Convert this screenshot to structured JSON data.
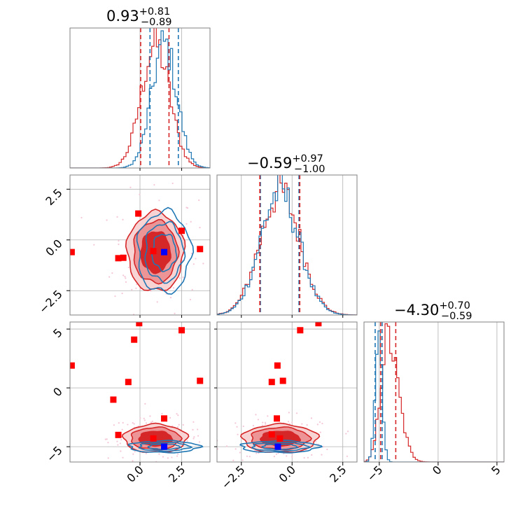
{
  "chart_data": {
    "type": "corner",
    "parameters": 3,
    "colors": {
      "red": "#d62728",
      "blue": "#1f77b4",
      "marker_red": "#ff0000",
      "marker_blue": "#0000ff"
    },
    "titles": [
      {
        "median": "0.93",
        "plus": "+0.81",
        "minus": "−0.89"
      },
      {
        "median": "−0.59",
        "plus": "+0.97",
        "minus": "−1.00"
      },
      {
        "median": "−4.30",
        "plus": "+0.70",
        "minus": "−0.59"
      }
    ],
    "ranges": [
      [
        -4.2,
        4.2
      ],
      [
        -3.7,
        3.2
      ],
      [
        -6.3,
        5.6
      ]
    ],
    "ticks": {
      "p0": [
        "0.0",
        "2.5"
      ],
      "p1": [
        "−2.5",
        "0.0",
        "2.5"
      ],
      "p2": [
        "−5",
        "0",
        "5"
      ]
    },
    "quantile_lines": {
      "p0": {
        "red": [
          0.04,
          1.74
        ],
        "blue": [
          0.6,
          2.3
        ]
      },
      "p1": {
        "red": [
          -1.59,
          0.38
        ],
        "blue": [
          -1.56,
          0.34
        ]
      },
      "p2": {
        "red": [
          -4.89,
          -3.6
        ],
        "blue": [
          -5.35,
          -4.76
        ]
      }
    },
    "marginal_profiles": {
      "p0": {
        "red": {
          "mu": 0.93,
          "sigma": 0.85
        },
        "blue": {
          "mu": 1.45,
          "sigma": 0.75
        }
      },
      "p1": {
        "red": {
          "mu": -0.59,
          "sigma": 0.98
        },
        "blue": {
          "mu": -0.61,
          "sigma": 0.95
        }
      },
      "p2": {
        "red": {
          "mu": -4.3,
          "sigma_left": 0.59,
          "sigma_right": 0.9
        },
        "blue": {
          "mu": -5.05,
          "sigma": 0.3
        }
      }
    },
    "contours": {
      "p1_vs_p0": {
        "red": {
          "cx": 0.93,
          "cy": -0.59,
          "rx": 1.7,
          "ry": 1.95
        },
        "blue": {
          "cx": 1.45,
          "cy": -0.6,
          "rx": 1.6,
          "ry": 2.0
        }
      },
      "p2_vs_p0": {
        "red": {
          "cx": 0.93,
          "cy": -4.3,
          "rx": 1.9,
          "ry": 1.2
        },
        "blue": {
          "cx": 1.45,
          "cy": -5.0,
          "rx": 2.1,
          "ry": 0.5
        }
      },
      "p2_vs_p1": {
        "red": {
          "cx": -0.59,
          "cy": -4.3,
          "rx": 1.85,
          "ry": 1.2
        },
        "blue": {
          "cx": -0.61,
          "cy": -5.0,
          "rx": 1.9,
          "ry": 0.5
        }
      }
    },
    "markers": {
      "p1_vs_p0": {
        "red": [
          [
            -4.1,
            -0.6
          ],
          [
            -1.3,
            -0.9
          ],
          [
            -1.0,
            -0.88
          ],
          [
            -0.1,
            1.3
          ],
          [
            0.8,
            -0.55
          ],
          [
            2.5,
            0.45
          ],
          [
            3.6,
            -0.45
          ]
        ],
        "blue": [
          [
            1.45,
            -0.6
          ]
        ]
      },
      "p2_vs_p0": {
        "red": [
          [
            -4.1,
            1.9
          ],
          [
            -1.6,
            -1.0
          ],
          [
            -1.3,
            -4.0
          ],
          [
            -0.7,
            0.5
          ],
          [
            -0.35,
            4.1
          ],
          [
            -0.05,
            5.5
          ],
          [
            0.8,
            -4.3
          ],
          [
            1.45,
            -2.6
          ],
          [
            2.5,
            4.9
          ],
          [
            3.6,
            0.6
          ]
        ],
        "blue": [
          [
            1.45,
            -5.0
          ]
        ]
      },
      "p2_vs_p1": {
        "red": [
          [
            -1.0,
            -3.95
          ],
          [
            -1.0,
            0.5
          ],
          [
            -0.75,
            -2.6
          ],
          [
            -0.72,
            1.9
          ],
          [
            -0.6,
            -4.3
          ],
          [
            -0.45,
            0.6
          ],
          [
            0.4,
            4.9
          ],
          [
            1.3,
            5.5
          ]
        ],
        "blue": [
          [
            -0.7,
            -5.0
          ]
        ]
      }
    }
  }
}
